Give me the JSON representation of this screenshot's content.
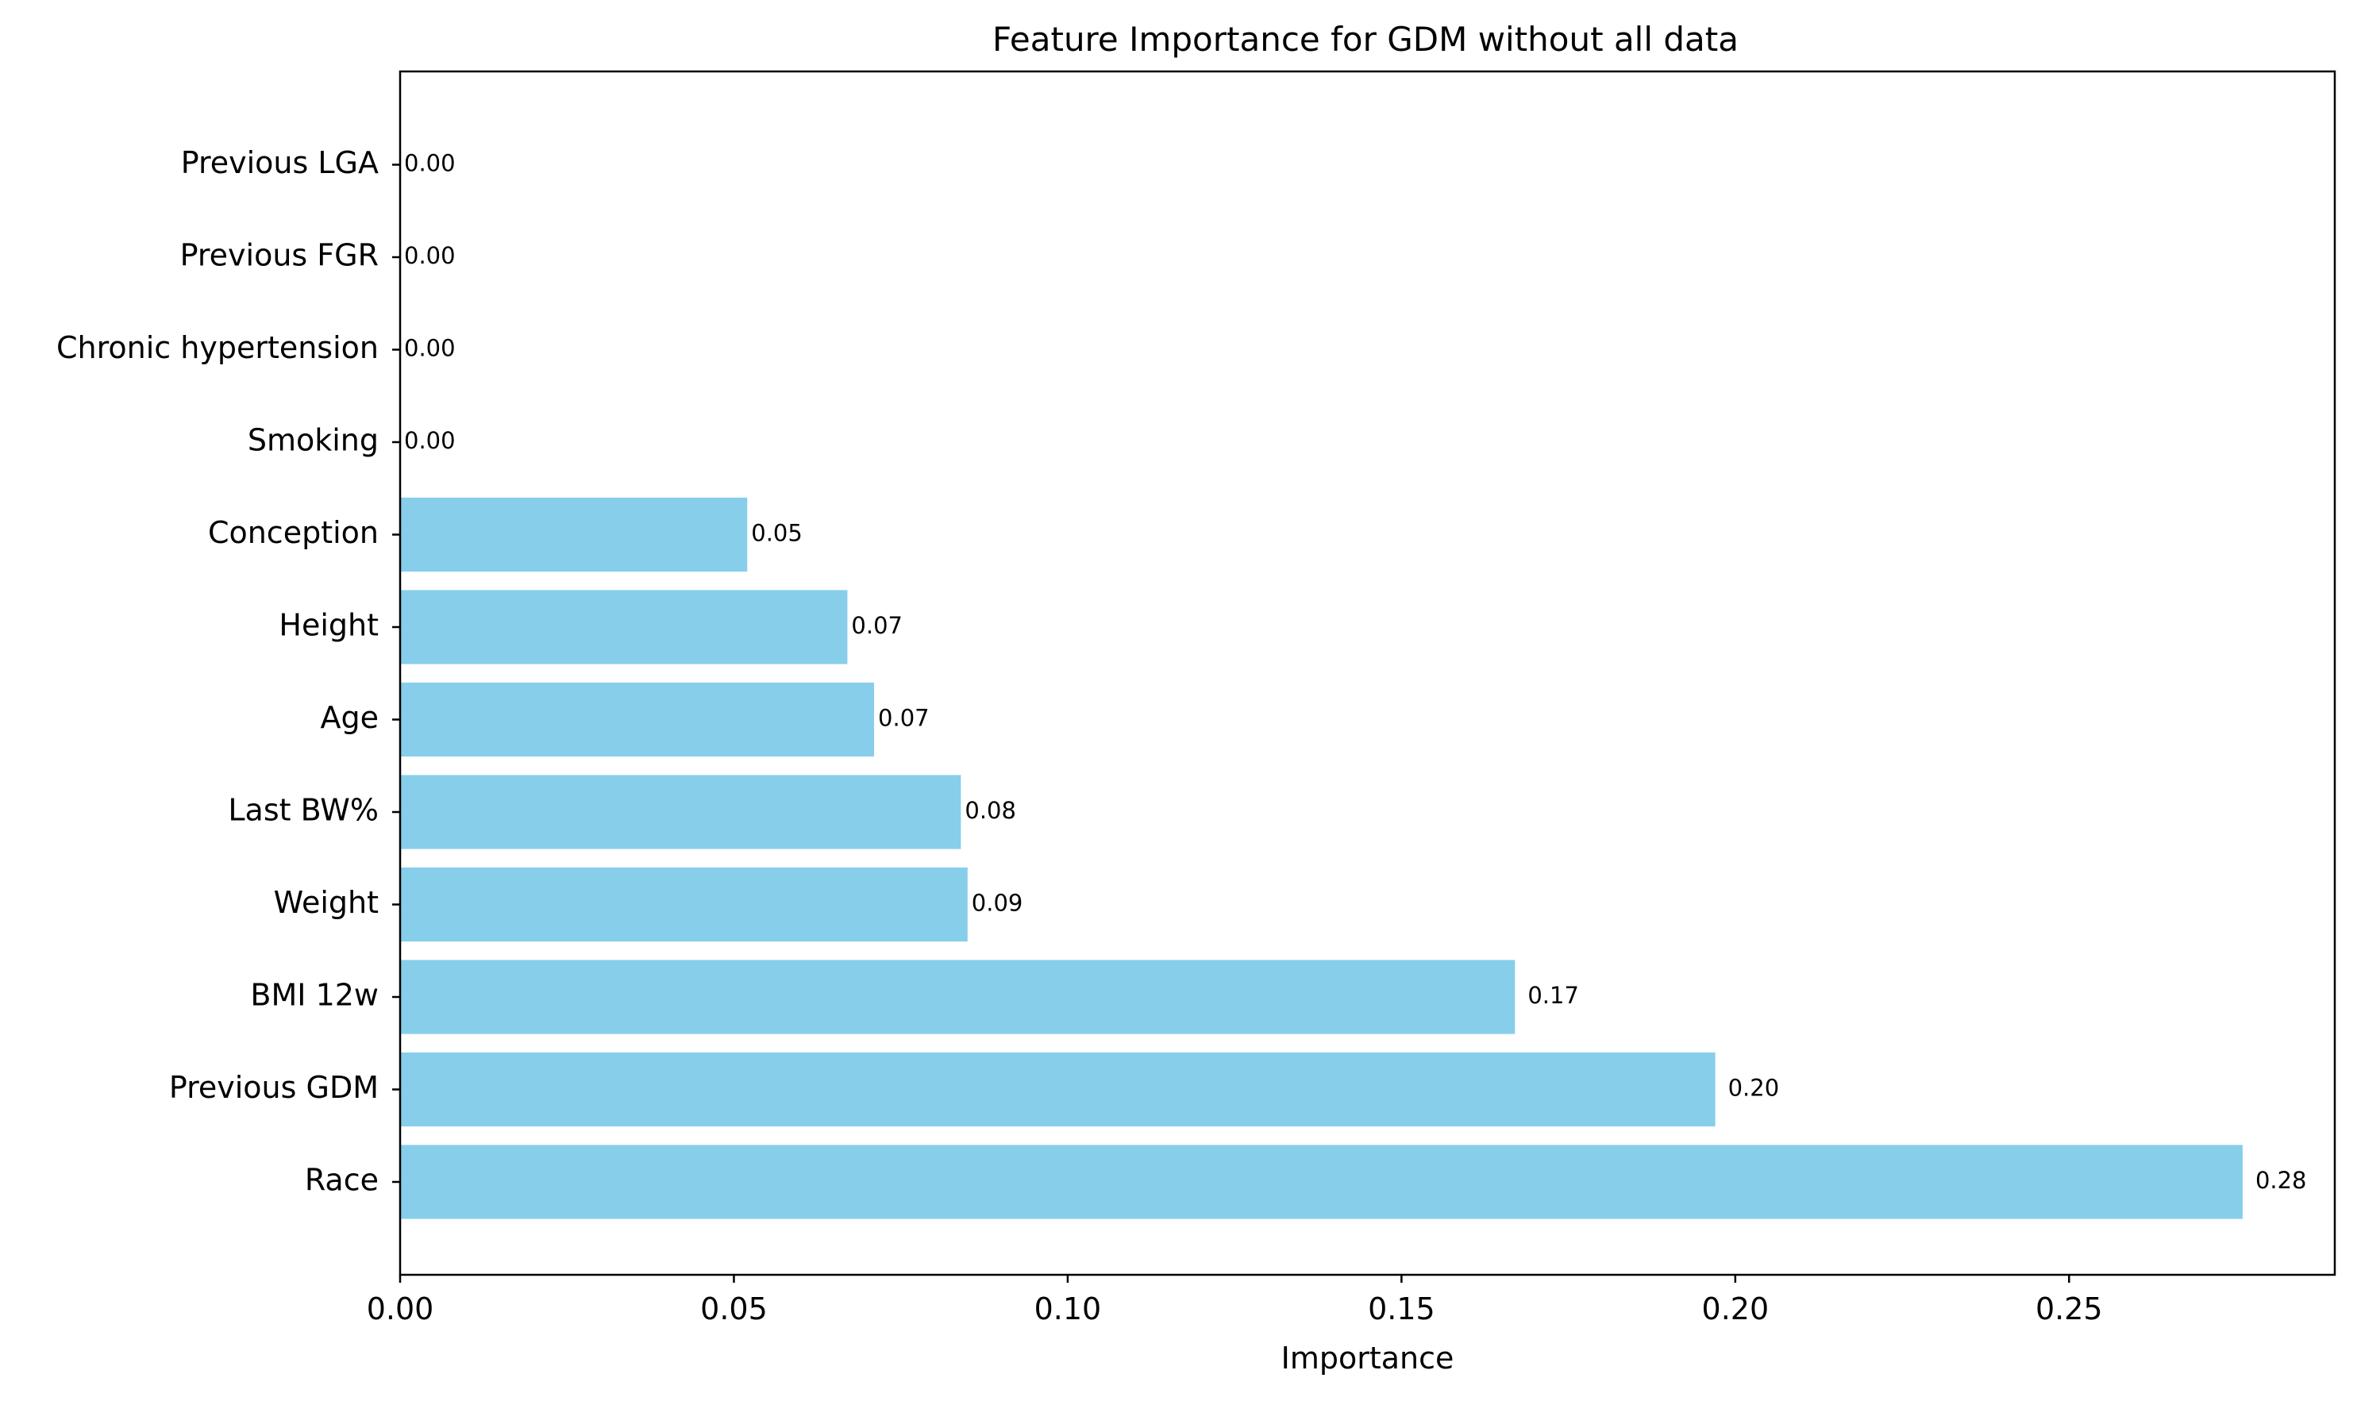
{
  "chart_data": {
    "type": "bar",
    "orientation": "horizontal",
    "title": "Feature Importance for GDM without all data",
    "xlabel": "Importance",
    "ylabel": "",
    "xlim": [
      0,
      0.2898
    ],
    "xticks": [
      0.0,
      0.05,
      0.1,
      0.15,
      0.2,
      0.25
    ],
    "xtick_labels": [
      "0.00",
      "0.05",
      "0.10",
      "0.15",
      "0.20",
      "0.25"
    ],
    "bar_color": "#87ceeb",
    "grid": false,
    "categories": [
      "Race",
      "Previous GDM",
      "BMI 12w",
      "Weight",
      "Last BW%",
      "Age",
      "Height",
      "Conception",
      "Smoking",
      "Chronic hypertension",
      "Previous FGR",
      "Previous LGA"
    ],
    "values": [
      0.276,
      0.197,
      0.167,
      0.085,
      0.084,
      0.071,
      0.067,
      0.052,
      0.0,
      0.0,
      0.0,
      0.0
    ],
    "value_labels": [
      "0.28",
      "0.20",
      "0.17",
      "0.09",
      "0.08",
      "0.07",
      "0.07",
      "0.05",
      "0.00",
      "0.00",
      "0.00",
      "0.00"
    ]
  }
}
